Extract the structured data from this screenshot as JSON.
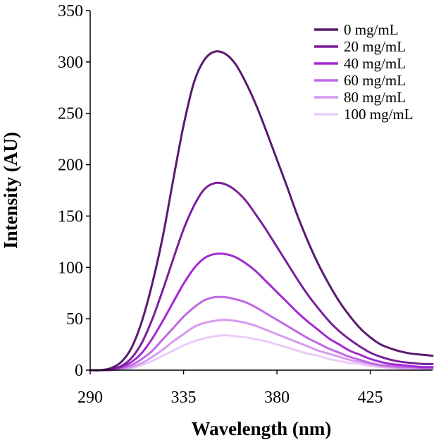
{
  "chart_data": {
    "type": "line",
    "xlabel": "Wavelength (nm)",
    "ylabel": "Intensity (AU)",
    "xlim": [
      290,
      455
    ],
    "ylim": [
      0,
      350
    ],
    "xticks": [
      "290",
      "335",
      "380",
      "425"
    ],
    "xtick_values": [
      290,
      335,
      380,
      425
    ],
    "yticks": [
      "0",
      "50",
      "100",
      "150",
      "200",
      "250",
      "300",
      "350"
    ],
    "ytick_values": [
      0,
      50,
      100,
      150,
      200,
      250,
      300,
      350
    ],
    "grid": false,
    "legend_position": "top-right",
    "x": [
      290,
      295,
      300,
      305,
      310,
      315,
      320,
      325,
      330,
      335,
      340,
      345,
      350,
      355,
      360,
      365,
      370,
      375,
      380,
      385,
      390,
      395,
      400,
      405,
      410,
      415,
      420,
      425,
      430,
      435,
      440,
      445,
      450,
      455
    ],
    "series": [
      {
        "name": "0 mg/mL",
        "color": "#5a1a6e",
        "values": [
          0,
          0,
          2,
          8,
          22,
          48,
          85,
          130,
          185,
          238,
          280,
          302,
          310,
          308,
          298,
          280,
          258,
          232,
          205,
          178,
          150,
          125,
          103,
          84,
          67,
          53,
          41,
          32,
          25,
          21,
          18,
          16,
          15,
          14
        ]
      },
      {
        "name": "20 mg/mL",
        "color": "#7a1f9a",
        "values": [
          0,
          0,
          1,
          4,
          12,
          27,
          50,
          78,
          108,
          137,
          160,
          176,
          182,
          181,
          175,
          165,
          151,
          136,
          120,
          104,
          88,
          73,
          60,
          48,
          38,
          30,
          23,
          17,
          13,
          10,
          8,
          7,
          6,
          6
        ]
      },
      {
        "name": "40 mg/mL",
        "color": "#a22ad0",
        "values": [
          0,
          0,
          1,
          3,
          8,
          17,
          31,
          48,
          66,
          84,
          99,
          109,
          113,
          113,
          110,
          104,
          96,
          86,
          76,
          66,
          56,
          47,
          39,
          31,
          25,
          19,
          15,
          11,
          8,
          6,
          5,
          4,
          3,
          3
        ]
      },
      {
        "name": "60 mg/mL",
        "color": "#c06ae4",
        "values": [
          0,
          0,
          0,
          2,
          5,
          11,
          19,
          30,
          41,
          52,
          61,
          68,
          71,
          71,
          69,
          66,
          61,
          55,
          49,
          43,
          37,
          31,
          26,
          21,
          17,
          13,
          10,
          7,
          5,
          4,
          3,
          3,
          2,
          2
        ]
      },
      {
        "name": "80 mg/mL",
        "color": "#d79bee",
        "values": [
          0,
          0,
          0,
          1,
          3,
          7,
          13,
          20,
          28,
          35,
          42,
          46,
          48,
          49,
          48,
          46,
          43,
          39,
          35,
          31,
          27,
          23,
          19,
          16,
          13,
          10,
          8,
          6,
          4,
          3,
          2,
          2,
          2,
          1
        ]
      },
      {
        "name": "100 mg/mL",
        "color": "#ecccf6",
        "values": [
          0,
          0,
          0,
          1,
          2,
          5,
          9,
          14,
          19,
          24,
          28,
          31,
          33,
          34,
          33,
          32,
          30,
          28,
          25,
          22,
          19,
          16,
          14,
          11,
          9,
          7,
          6,
          4,
          3,
          2,
          2,
          1,
          1,
          1
        ]
      }
    ]
  }
}
